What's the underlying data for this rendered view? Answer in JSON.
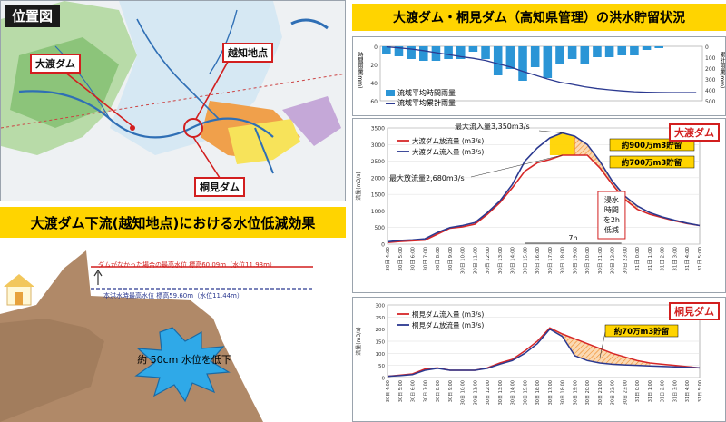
{
  "map": {
    "title": "位置図",
    "label_owatari": "大渡ダム",
    "label_ochi": "越知地点",
    "label_kirimi": "桐見ダム"
  },
  "right_title": "大渡ダム・桐見ダム（高知県管理）の洪水貯留状況",
  "left_title": "大渡ダム下流(越知地点)における水位低減効果",
  "cross_section": {
    "label_nodam": "ダムがなかった場合の最高水位 標高60.09m（水位11.93m）",
    "label_actual": "本洪水時最高水位  標高59.60m（水位11.44m）",
    "burst": "約 50cm 水位を低下"
  },
  "rain_chart": {
    "left_axis_label": "時間雨量(mm)",
    "right_axis_label": "累計雨量(mm)",
    "left_ticks": [
      "0",
      "20",
      "40",
      "60"
    ],
    "right_ticks": [
      "0",
      "100",
      "200",
      "300",
      "400",
      "500"
    ],
    "legend_bar": "流域平均時間雨量",
    "legend_line": "流域平均累計雨量"
  },
  "chart_data": [
    {
      "type": "bar",
      "name": "rain",
      "series": [
        {
          "name": "流域平均時間雨量",
          "values": [
            9,
            11,
            14,
            16,
            16,
            14,
            14,
            6,
            14,
            32,
            25,
            38,
            23,
            35,
            20,
            14,
            19,
            12,
            12,
            10,
            10,
            4,
            2,
            0,
            0,
            0
          ]
        },
        {
          "name": "流域平均累計雨量",
          "values": [
            5,
            14,
            25,
            40,
            58,
            76,
            95,
            110,
            130,
            160,
            190,
            230,
            265,
            300,
            330,
            350,
            372,
            388,
            400,
            410,
            418,
            422,
            424,
            425,
            425,
            425
          ]
        }
      ],
      "ylim": [
        0,
        60
      ],
      "y2lim": [
        0,
        500
      ]
    },
    {
      "type": "line",
      "name": "owatari",
      "title": "大渡ダム",
      "x": [
        "30日 4:00",
        "30日 5:00",
        "30日 6:00",
        "30日 7:00",
        "30日 8:00",
        "30日 9:00",
        "30日 10:00",
        "30日 11:00",
        "30日 12:00",
        "30日 13:00",
        "30日 14:00",
        "30日 15:00",
        "30日 16:00",
        "30日 17:00",
        "30日 18:00",
        "30日 19:00",
        "30日 20:00",
        "30日 21:00",
        "30日 22:00",
        "30日 23:00",
        "31日 0:00",
        "31日 1:00",
        "31日 2:00",
        "31日 3:00",
        "31日 4:00",
        "31日 5:00"
      ],
      "ylabel": "流量(m3/s)",
      "yticks": [
        "0",
        "500",
        "1000",
        "1500",
        "2000",
        "2500",
        "3000",
        "3500"
      ],
      "ylim": [
        0,
        3500
      ],
      "series": [
        {
          "name": "大渡ダム放流量 (m3/s)",
          "values": [
            50,
            80,
            100,
            120,
            300,
            480,
            520,
            600,
            900,
            1250,
            1700,
            2200,
            2450,
            2550,
            2680,
            2680,
            2680,
            2300,
            1800,
            1350,
            1050,
            900,
            800,
            700,
            620,
            560
          ]
        },
        {
          "name": "大渡ダム流入量 (m3/s)",
          "values": [
            70,
            110,
            130,
            160,
            350,
            500,
            560,
            650,
            950,
            1300,
            1800,
            2500,
            2900,
            3200,
            3350,
            3250,
            3000,
            2500,
            1900,
            1450,
            1150,
            950,
            820,
            720,
            630,
            560
          ]
        }
      ],
      "annotations": [
        {
          "text": "最大流入量3,350m3/s"
        },
        {
          "text": "最大放流量2,680m3/s"
        },
        {
          "text": "約900万m3貯留"
        },
        {
          "text": "約700万m3貯留"
        },
        {
          "text": "浸水時間を2h低減"
        },
        {
          "text": "7h"
        }
      ]
    },
    {
      "type": "line",
      "name": "kirimi",
      "title": "桐見ダム",
      "x": [
        "30日 4:00",
        "30日 5:00",
        "30日 6:00",
        "30日 7:00",
        "30日 8:00",
        "30日 9:00",
        "30日 10:00",
        "30日 11:00",
        "30日 12:00",
        "30日 13:00",
        "30日 14:00",
        "30日 15:00",
        "30日 16:00",
        "30日 17:00",
        "30日 18:00",
        "30日 19:00",
        "30日 20:00",
        "30日 21:00",
        "30日 22:00",
        "30日 23:00",
        "31日 0:00",
        "31日 1:00",
        "31日 2:00",
        "31日 3:00",
        "31日 4:00",
        "31日 5:00"
      ],
      "ylabel": "流量(m3/s)",
      "yticks": [
        "0",
        "50",
        "100",
        "150",
        "200",
        "250",
        "300"
      ],
      "ylim": [
        0,
        300
      ],
      "series": [
        {
          "name": "桐見ダム流入量 (m3/s)",
          "values": [
            5,
            10,
            15,
            35,
            40,
            30,
            30,
            30,
            40,
            60,
            75,
            110,
            150,
            205,
            180,
            160,
            140,
            120,
            100,
            85,
            70,
            60,
            55,
            50,
            45,
            40
          ]
        },
        {
          "name": "桐見ダム放流量 (m3/s)",
          "values": [
            5,
            8,
            12,
            30,
            38,
            30,
            30,
            30,
            38,
            55,
            70,
            100,
            140,
            200,
            170,
            90,
            70,
            60,
            55,
            52,
            50,
            48,
            46,
            44,
            42,
            40
          ]
        }
      ],
      "annotations": [
        {
          "text": "約70万m3貯留"
        }
      ]
    }
  ],
  "colors": {
    "inflow": "#2b3990",
    "outflow": "#d62728",
    "rain": "#2b95d6",
    "accent_red": "#d21f1f",
    "storage_yellow": "#ffd400",
    "storage_orange": "#f08a24"
  }
}
